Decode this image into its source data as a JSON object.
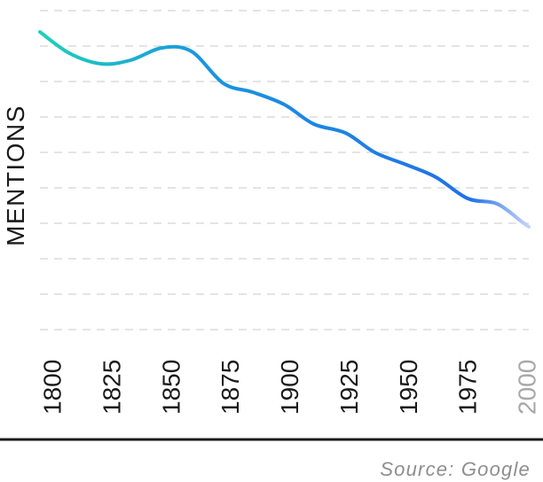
{
  "chart_data": {
    "type": "line",
    "title": "",
    "xlabel": "",
    "ylabel": "MENTIONS",
    "x": [
      1800,
      1825,
      1850,
      1875,
      1900,
      1925,
      1950,
      1975,
      2000
    ],
    "x_tick_labels": [
      "1800",
      "1825",
      "1850",
      "1875",
      "1900",
      "1925",
      "1950",
      "1975",
      "2000"
    ],
    "series": [
      {
        "name": "mentions",
        "x": [
          1800,
          1812,
          1825,
          1837,
          1850,
          1862,
          1875,
          1887,
          1900,
          1912,
          1925,
          1937,
          1950,
          1962,
          1975,
          1987,
          1997,
          2000
        ],
        "values": [
          8.4,
          7.8,
          7.5,
          7.6,
          7.95,
          7.85,
          6.95,
          6.7,
          6.35,
          5.8,
          5.55,
          5.0,
          4.65,
          4.3,
          3.7,
          3.55,
          3.05,
          2.9
        ]
      }
    ],
    "xlim": [
      1800,
      2000
    ],
    "ylim": [
      0,
      9
    ],
    "grid": true,
    "colors": {
      "start": "#1ed1b8",
      "middle": "#1a96e0",
      "end": "#2070e8",
      "faded_end": "#c5d4f8",
      "gridline": "#dcdcdc",
      "axis": "#1a1a1a",
      "faded_tick": "#a8a8a8"
    },
    "source": "Source: Google"
  }
}
